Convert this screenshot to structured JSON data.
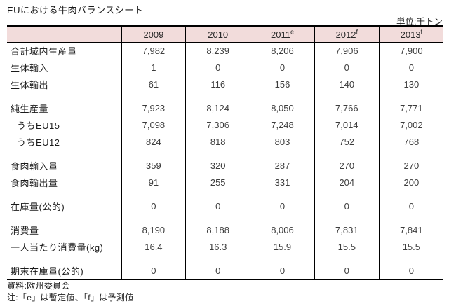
{
  "page": {
    "title": "EUにおける牛肉バランスシート",
    "unit": "単位:千トン"
  },
  "colors": {
    "header_bg": "#f2dcdb",
    "border": "#000000",
    "background": "#ffffff"
  },
  "table": {
    "header": [
      {
        "year": "",
        "sup": ""
      },
      {
        "year": "2009",
        "sup": ""
      },
      {
        "year": "2010",
        "sup": ""
      },
      {
        "year": "2011",
        "sup": "e"
      },
      {
        "year": "2012",
        "sup": "f"
      },
      {
        "year": "2013",
        "sup": "f"
      }
    ],
    "rows": [
      {
        "label": "合計域内生産量",
        "indent": false,
        "values": [
          "7,982",
          "8,239",
          "8,206",
          "7,906",
          "7,900"
        ]
      },
      {
        "label": "生体輸入",
        "indent": false,
        "values": [
          "1",
          "0",
          "0",
          "0",
          "0"
        ]
      },
      {
        "label": "生体輸出",
        "indent": false,
        "values": [
          "61",
          "116",
          "156",
          "140",
          "130"
        ]
      },
      {
        "label": "純生産量",
        "indent": false,
        "values": [
          "7,923",
          "8,124",
          "8,050",
          "7,766",
          "7,771"
        ]
      },
      {
        "label": "うちEU15",
        "indent": true,
        "values": [
          "7,098",
          "7,306",
          "7,248",
          "7,014",
          "7,002"
        ]
      },
      {
        "label": "うちEU12",
        "indent": true,
        "values": [
          "824",
          "818",
          "803",
          "752",
          "768"
        ]
      },
      {
        "label": "食肉輸入量",
        "indent": false,
        "values": [
          "359",
          "320",
          "287",
          "270",
          "270"
        ]
      },
      {
        "label": "食肉輸出量",
        "indent": false,
        "values": [
          "91",
          "255",
          "331",
          "204",
          "200"
        ]
      },
      {
        "label": "在庫量(公的)",
        "indent": false,
        "values": [
          "0",
          "0",
          "0",
          "0",
          "0"
        ]
      },
      {
        "label": "消費量",
        "indent": false,
        "values": [
          "8,190",
          "8,188",
          "8,006",
          "7,831",
          "7,841"
        ]
      },
      {
        "label": "一人当たり消費量(kg)",
        "indent": false,
        "values": [
          "16.4",
          "16.3",
          "15.9",
          "15.5",
          "15.5"
        ]
      },
      {
        "label": "期末在庫量(公的)",
        "indent": false,
        "values": [
          "0",
          "0",
          "0",
          "0",
          "0"
        ]
      }
    ]
  },
  "notes": {
    "source": "資料:欧州委員会",
    "note": "注:「e」は暫定値、「f」は予測値"
  }
}
